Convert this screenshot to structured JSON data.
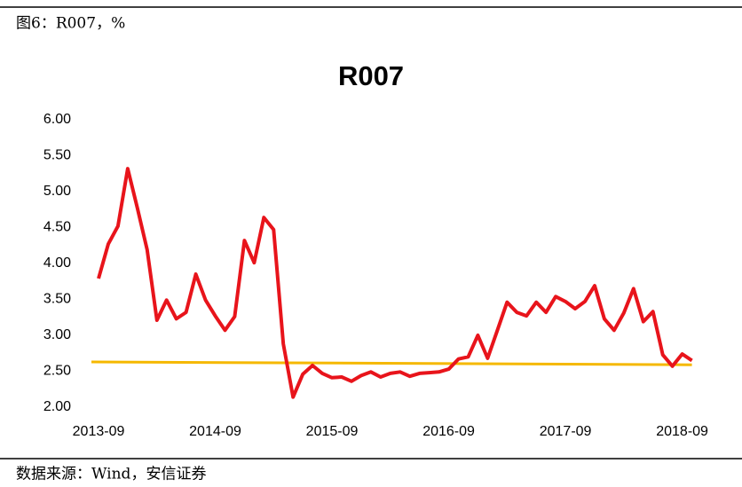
{
  "header": "图6：R007，%",
  "source": "数据来源：Wind，安信证券",
  "chart_data": {
    "type": "line",
    "title": "R007",
    "categories": [
      "2013-09",
      null,
      null,
      null,
      null,
      null,
      null,
      null,
      null,
      null,
      null,
      null,
      "2014-09",
      null,
      null,
      null,
      null,
      null,
      null,
      null,
      null,
      null,
      null,
      null,
      "2015-09",
      null,
      null,
      null,
      null,
      null,
      null,
      null,
      null,
      null,
      null,
      null,
      "2016-09",
      null,
      null,
      null,
      null,
      null,
      null,
      null,
      null,
      null,
      null,
      null,
      "2017-09",
      null,
      null,
      null,
      null,
      null,
      null,
      null,
      null,
      null,
      null,
      null,
      "2018-09",
      null
    ],
    "series": [
      {
        "color": "#e8141b",
        "values": [
          3.79,
          4.27,
          4.52,
          5.32,
          4.77,
          4.19,
          3.21,
          3.49,
          3.23,
          3.32,
          3.85,
          3.49,
          3.27,
          3.07,
          3.26,
          4.32,
          4.01,
          4.64,
          4.47,
          2.88,
          2.14,
          2.46,
          2.58,
          2.47,
          2.41,
          2.42,
          2.36,
          2.44,
          2.49,
          2.42,
          2.47,
          2.49,
          2.43,
          2.47,
          2.48,
          2.49,
          2.53,
          2.67,
          2.7,
          3.0,
          2.68,
          3.07,
          3.46,
          3.32,
          3.27,
          3.46,
          3.32,
          3.54,
          3.47,
          3.37,
          3.47,
          3.69,
          3.23,
          3.07,
          3.31,
          3.65,
          3.19,
          3.33,
          2.73,
          2.57,
          2.74,
          2.65
        ]
      }
    ],
    "reference_line": {
      "color": "#f5b800",
      "values": [
        2.63,
        2.59
      ]
    },
    "ylim": [
      2,
      6
    ],
    "yticks": [
      {
        "value": 2,
        "label": "2.00"
      },
      {
        "value": 2.5,
        "label": "2.50"
      },
      {
        "value": 3,
        "label": "3.00"
      },
      {
        "value": 3.5,
        "label": "3.50"
      },
      {
        "value": 4,
        "label": "4.00"
      },
      {
        "value": 4.5,
        "label": "4.50"
      },
      {
        "value": 5,
        "label": "5.00"
      },
      {
        "value": 5.5,
        "label": "5.50"
      },
      {
        "value": 6,
        "label": "6.00"
      }
    ]
  }
}
